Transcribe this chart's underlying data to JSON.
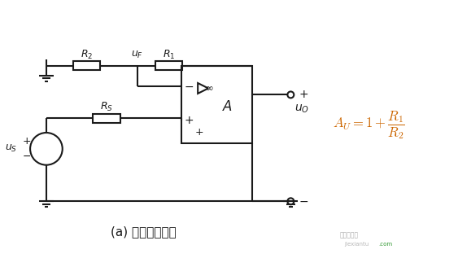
{
  "bg_color": "#ffffff",
  "line_color": "#1a1a1a",
  "title": "(a) 同相比例放大",
  "formula_color": "#cc6600",
  "component_labels": {
    "R2": "R_2",
    "R1": "R_1",
    "RS": "R_S",
    "uF": "u_F",
    "uS": "u_S",
    "uO": "u_O"
  },
  "layout": {
    "fig_w": 5.63,
    "fig_h": 3.28,
    "dpi": 100
  }
}
